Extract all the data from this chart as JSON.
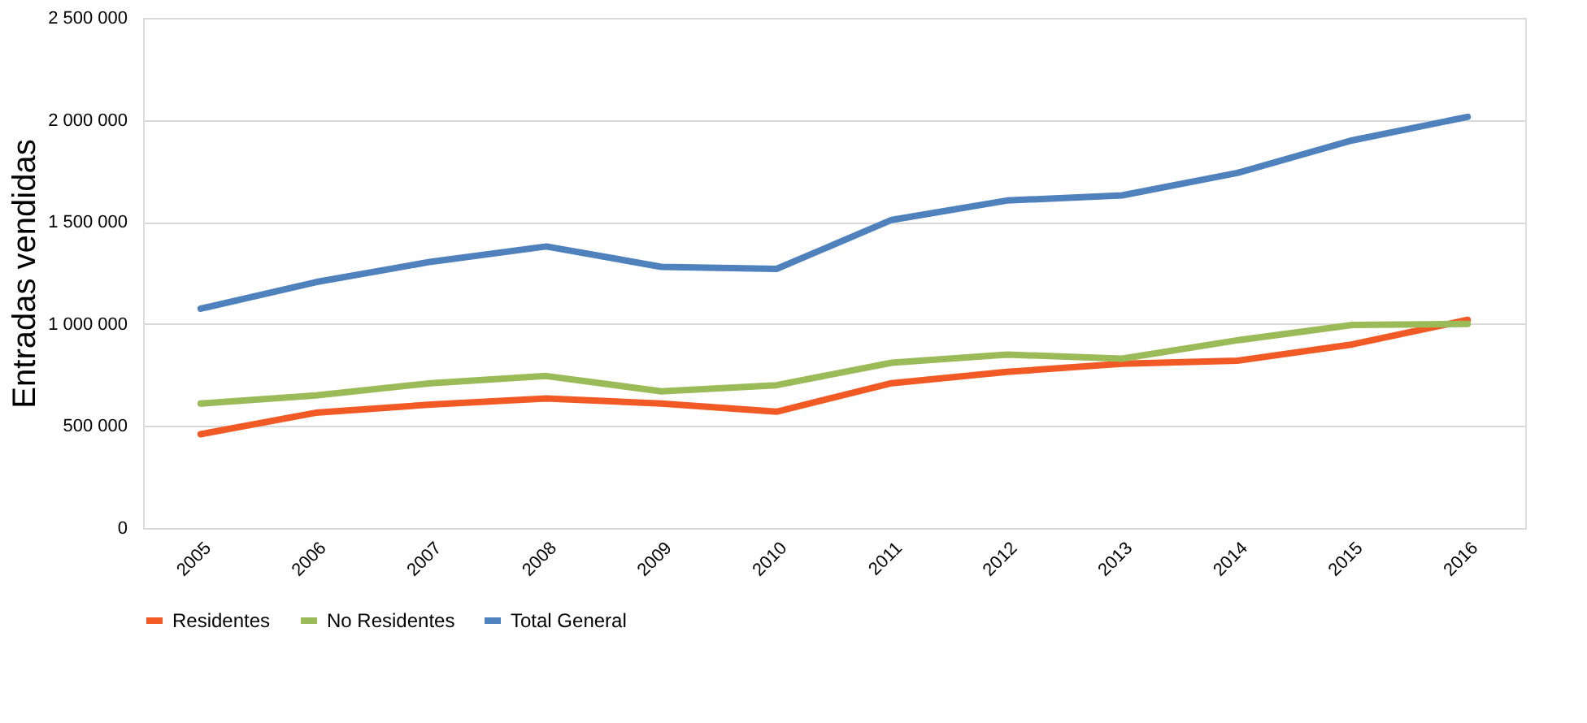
{
  "chart_data": {
    "type": "line",
    "ylabel": "Entradas vendidas",
    "categories": [
      "2005",
      "2006",
      "2007",
      "2008",
      "2009",
      "2010",
      "2011",
      "2012",
      "2013",
      "2014",
      "2015",
      "2016"
    ],
    "series": [
      {
        "name": "Residentes",
        "color": "#f15a24",
        "values": [
          460000,
          565000,
          605000,
          635000,
          610000,
          570000,
          710000,
          765000,
          805000,
          820000,
          900000,
          1020000
        ]
      },
      {
        "name": "No Residentes",
        "color": "#9bbb59",
        "values": [
          610000,
          650000,
          710000,
          745000,
          670000,
          700000,
          810000,
          850000,
          830000,
          920000,
          995000,
          1000000
        ]
      },
      {
        "name": "Total General",
        "color": "#4f81bd",
        "values": [
          1075000,
          1205000,
          1305000,
          1380000,
          1280000,
          1270000,
          1510000,
          1605000,
          1630000,
          1740000,
          1900000,
          2015000
        ]
      }
    ],
    "ylim": [
      0,
      2500000
    ],
    "yticks": [
      {
        "value": 0,
        "label": "0"
      },
      {
        "value": 500000,
        "label": "500 000"
      },
      {
        "value": 1000000,
        "label": "1 000 000"
      },
      {
        "value": 1500000,
        "label": "1 500 000"
      },
      {
        "value": 2000000,
        "label": "2 000 000"
      },
      {
        "value": 2500000,
        "label": "2 500 000"
      }
    ],
    "grid": "y",
    "legend": "bottom",
    "marker": "none",
    "line_style": "solid"
  }
}
